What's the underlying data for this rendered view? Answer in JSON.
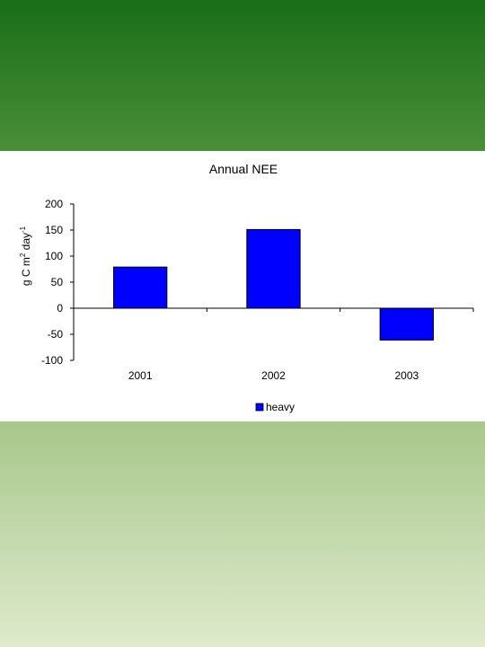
{
  "chart_data": {
    "type": "bar",
    "title": "Annual NEE",
    "ylabel": {
      "base": "g C m",
      "sup1": "2",
      "mid": " day",
      "sup2": "-1"
    },
    "xlabel": "",
    "categories": [
      "2001",
      "2002",
      "2003"
    ],
    "series": [
      {
        "name": "heavy",
        "color": "#0000ff",
        "values": [
          79,
          151,
          -61
        ]
      }
    ],
    "ylim": [
      -100,
      200
    ],
    "yticks": [
      200,
      150,
      100,
      50,
      0,
      -50,
      -100
    ],
    "grid": false,
    "legend": "bottom-center"
  }
}
